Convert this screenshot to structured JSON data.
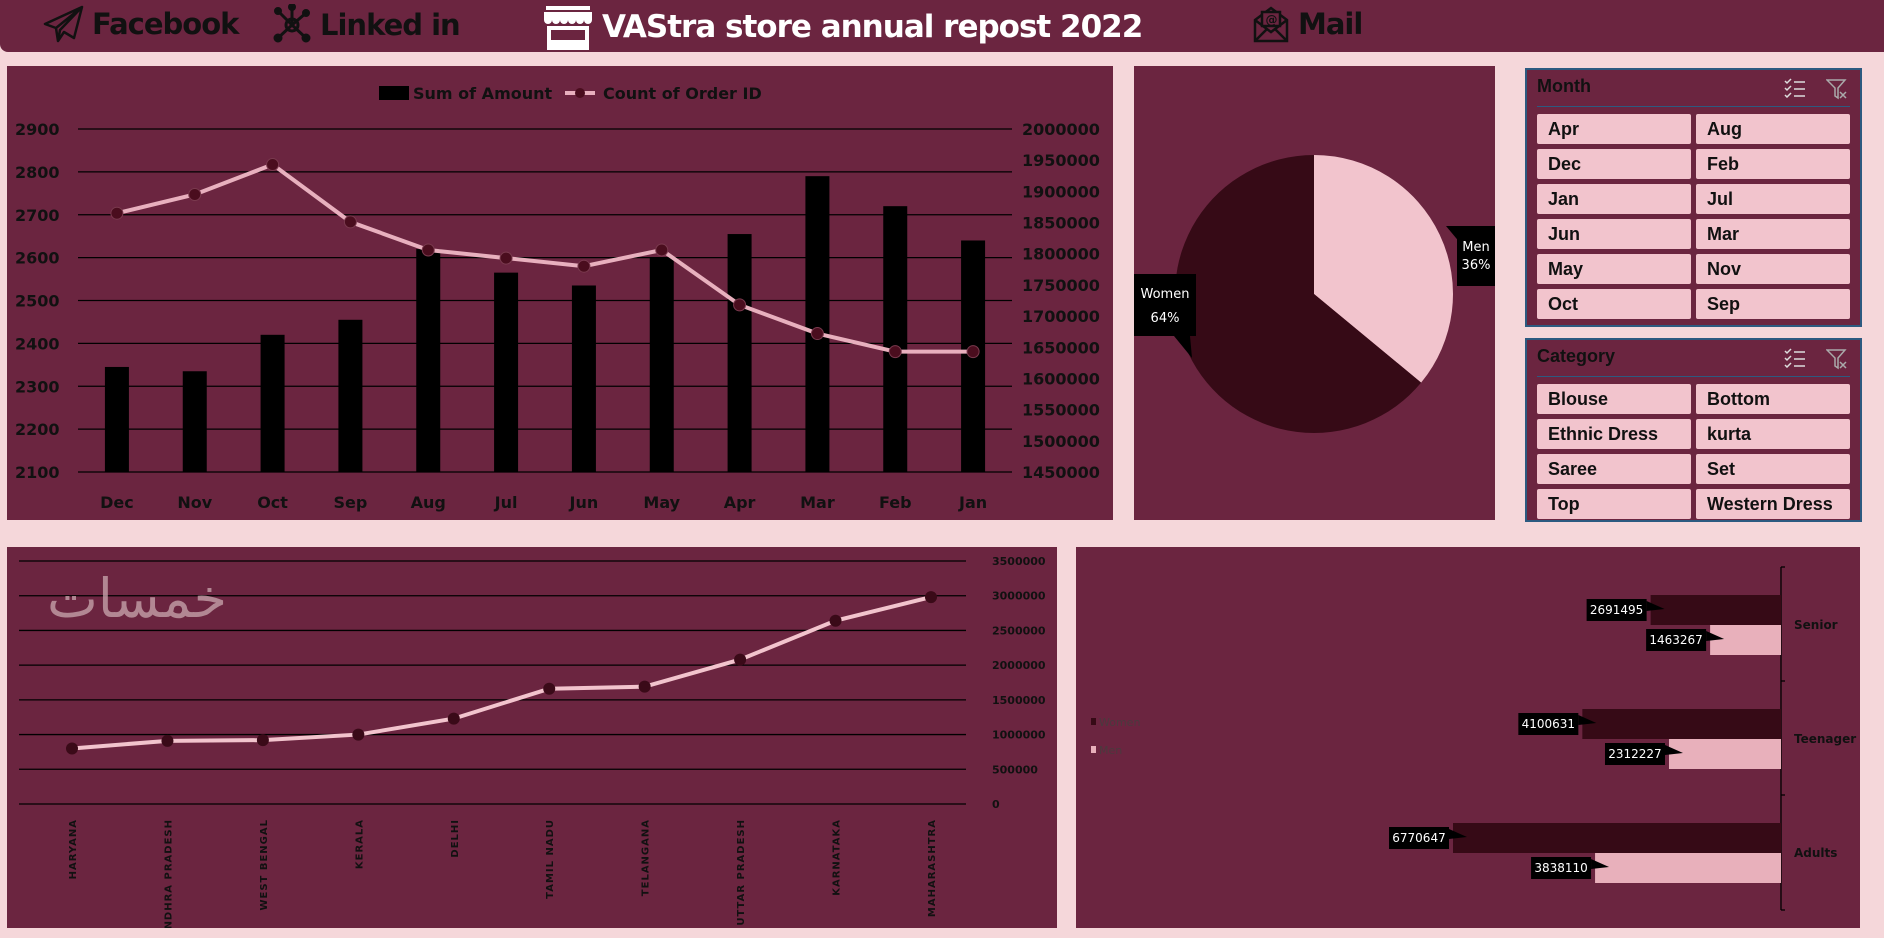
{
  "header": {
    "facebook_label": "Facebook",
    "linkedin_label": "Linked in",
    "title": "VAStra store annual repost 2022",
    "mail_label": "Mail"
  },
  "colors": {
    "page_bg": "#f5d7da",
    "panel_bg": "#6b2540",
    "dark": "#360a16",
    "pink": "#f2c4cd",
    "line": "#e8b0be"
  },
  "chart_data": [
    {
      "type": "bar+line",
      "legend": [
        "Sum of Amount",
        "Count of Order ID"
      ],
      "legend_position": "top",
      "categories": [
        "Dec",
        "Nov",
        "Oct",
        "Sep",
        "Aug",
        "Jul",
        "Jun",
        "May",
        "Apr",
        "Mar",
        "Feb",
        "Jan"
      ],
      "series": [
        {
          "name": "Sum of Amount",
          "type": "bar",
          "axis": "left",
          "values": [
            2345,
            2335,
            2420,
            2455,
            2620,
            2565,
            2535,
            2600,
            2655,
            2790,
            2720,
            2640
          ]
        },
        {
          "name": "Count of Order ID",
          "type": "line",
          "axis": "right",
          "values": [
            1865000,
            1895000,
            1943000,
            1851000,
            1806000,
            1793000,
            1780000,
            1806000,
            1718000,
            1672000,
            1643000,
            1643000
          ]
        }
      ],
      "left_ticks": [
        "2900",
        "2800",
        "2700",
        "2600",
        "2500",
        "2400",
        "2300",
        "2200",
        "2100"
      ],
      "right_ticks": [
        "2000000",
        "1950000",
        "1900000",
        "1850000",
        "1800000",
        "1750000",
        "1700000",
        "1650000",
        "1600000",
        "1550000",
        "1500000",
        "1450000"
      ],
      "ylim_left": [
        2100,
        2900
      ],
      "ylim_right": [
        1450000,
        2000000
      ],
      "grid": true
    },
    {
      "type": "pie",
      "slices": [
        {
          "name": "Men",
          "label": "Men",
          "pct_label": "36%",
          "value": 36
        },
        {
          "name": "Women",
          "label": "Women",
          "pct_label": "64%",
          "value": 64
        }
      ]
    },
    {
      "type": "line",
      "categories": [
        "HARYANA",
        "ANDHRA PRADESH",
        "WEST BENGAL",
        "KERALA",
        "DELHI",
        "TAMIL NADU",
        "TELANGANA",
        "UTTAR PRADESH",
        "KARNATAKA",
        "MAHARASHTRA"
      ],
      "values": [
        800000,
        910000,
        920000,
        1000000,
        1230000,
        1660000,
        1690000,
        2080000,
        2640000,
        2980000
      ],
      "y_ticks": [
        "3500000",
        "3000000",
        "2500000",
        "2000000",
        "1500000",
        "1000000",
        "500000",
        "0"
      ],
      "ylim": [
        0,
        3500000
      ],
      "grid": true
    },
    {
      "type": "bar-horizontal",
      "categories": [
        "Senior",
        "Teenager",
        "Adults"
      ],
      "series": [
        {
          "name": "Women",
          "values": [
            2691495,
            4100631,
            6770647
          ],
          "labels": [
            "2691495",
            "4100631",
            "6770647"
          ]
        },
        {
          "name": "Men",
          "values": [
            1463267,
            2312227,
            3838110
          ],
          "labels": [
            "1463267",
            "2312227",
            "3838110"
          ]
        }
      ],
      "legend": [
        "Women",
        "Men"
      ],
      "legend_position": "left",
      "orientation": "reversed (bars extend left from axis on right)"
    }
  ],
  "month_slicer": {
    "title": "Month",
    "items": [
      "Apr",
      "Aug",
      "Dec",
      "Feb",
      "Jan",
      "Jul",
      "Jun",
      "Mar",
      "May",
      "Nov",
      "Oct",
      "Sep"
    ]
  },
  "category_slicer": {
    "title": "Category",
    "items": [
      "Blouse",
      "Bottom",
      "Ethnic Dress",
      "kurta",
      "Saree",
      "Set",
      "Top",
      "Western Dress"
    ]
  },
  "watermark": "خمسات"
}
